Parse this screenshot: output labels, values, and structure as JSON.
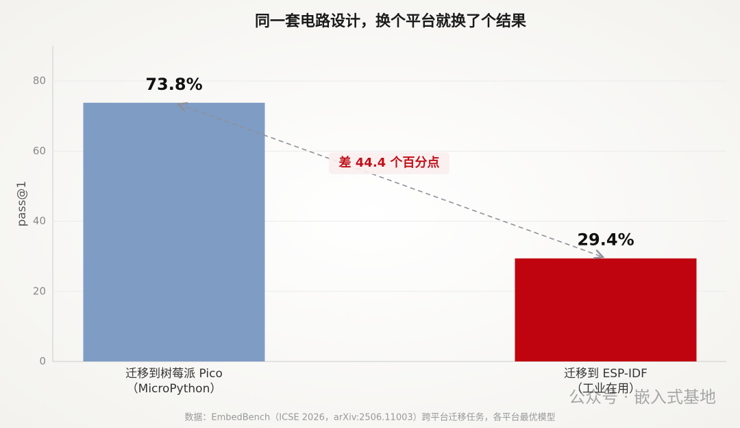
{
  "chart_data": {
    "type": "bar",
    "title": "同一套电路设计，换个平台就换了个结果",
    "ylabel": "pass@1",
    "categories": [
      [
        "迁移到树莓派 Pico",
        "（MicroPython）"
      ],
      [
        "迁移到 ESP-IDF",
        "（工业在用）"
      ]
    ],
    "values": [
      73.8,
      29.4
    ],
    "value_labels": [
      "73.8%",
      "29.4%"
    ],
    "colors": [
      "#7f9cc4",
      "#bf030f"
    ],
    "ylim": [
      0,
      90
    ],
    "yticks": [
      0,
      20,
      40,
      60,
      80
    ],
    "grid": true,
    "annotation": "差 44.4 个百分点",
    "source": "数据：EmbedBench（ICSE 2026，arXiv:2506.11003）跨平台迁移任务，各平台最优模型",
    "watermark": "公众号 · 嵌入式基地"
  }
}
